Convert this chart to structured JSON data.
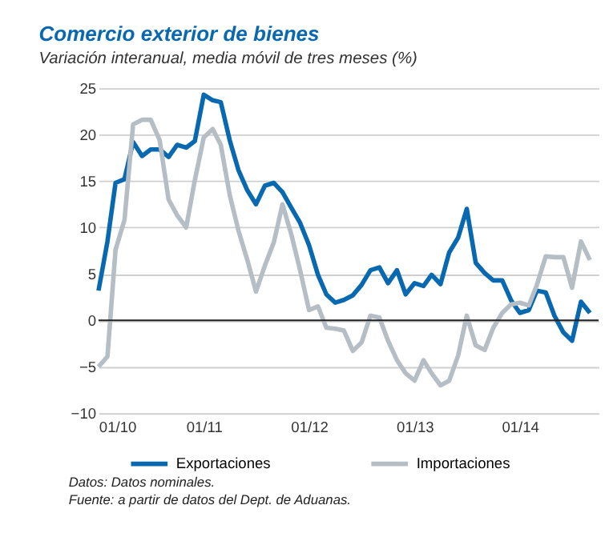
{
  "chart_data": {
    "type": "line",
    "title": "Comercio exterior de bienes",
    "subtitle": "Variación interanual, media móvil de tres meses (%)",
    "x": [
      "2010-01",
      "2010-02",
      "2010-03",
      "2010-04",
      "2010-05",
      "2010-06",
      "2010-07",
      "2010-08",
      "2010-09",
      "2010-10",
      "2010-11",
      "2010-12",
      "2011-01",
      "2011-02",
      "2011-03",
      "2011-04",
      "2011-05",
      "2011-06",
      "2011-07",
      "2011-08",
      "2011-09",
      "2011-10",
      "2011-11",
      "2011-12",
      "2012-01",
      "2012-02",
      "2012-03",
      "2012-04",
      "2012-05",
      "2012-06",
      "2012-07",
      "2012-08",
      "2012-09",
      "2012-10",
      "2012-11",
      "2012-12",
      "2013-01",
      "2013-02",
      "2013-03",
      "2013-04",
      "2013-05",
      "2013-06",
      "2013-07",
      "2013-08",
      "2013-09",
      "2013-10",
      "2013-11",
      "2013-12",
      "2014-01",
      "2014-02",
      "2014-03",
      "2014-04",
      "2014-05",
      "2014-06",
      "2014-07",
      "2014-08",
      "2014-09"
    ],
    "series": [
      {
        "name": "Exportaciones",
        "color": "#0868b0",
        "values": [
          3.2,
          8.5,
          14.8,
          15.2,
          19.2,
          17.7,
          18.4,
          18.4,
          17.6,
          18.9,
          18.6,
          19.3,
          24.3,
          23.7,
          23.5,
          19.4,
          16.2,
          14.0,
          12.5,
          14.5,
          14.8,
          13.8,
          12.1,
          10.5,
          8.1,
          4.9,
          2.8,
          1.9,
          2.2,
          2.7,
          3.8,
          5.4,
          5.7,
          4.0,
          5.4,
          2.8,
          4.0,
          3.7,
          4.9,
          3.9,
          7.3,
          8.9,
          12.0,
          6.2,
          5.1,
          4.3,
          4.3,
          2.2,
          0.8,
          1.1,
          3.2,
          3.0,
          0.5,
          -1.3,
          -2.2,
          2.0,
          0.8
        ]
      },
      {
        "name": "Importaciones",
        "color": "#b4bec4",
        "values": [
          -5.0,
          -3.9,
          7.6,
          10.8,
          21.1,
          21.6,
          21.6,
          19.4,
          13.0,
          11.3,
          10.0,
          15.1,
          19.7,
          20.6,
          18.9,
          13.5,
          9.7,
          6.5,
          3.1,
          5.9,
          8.4,
          12.5,
          9.2,
          5.4,
          1.1,
          1.5,
          -0.8,
          -0.9,
          -1.1,
          -3.3,
          -2.4,
          0.5,
          0.3,
          -2.2,
          -4.3,
          -5.7,
          -6.5,
          -4.3,
          -5.7,
          -7.0,
          -6.5,
          -3.8,
          0.5,
          -2.7,
          -3.2,
          -0.8,
          0.8,
          1.7,
          1.9,
          1.6,
          3.8,
          6.9,
          6.8,
          6.8,
          3.5,
          8.5,
          6.5
        ]
      }
    ],
    "xlim": [
      "2010-01",
      "2014-10"
    ],
    "xticks": [
      {
        "value": "2010-01",
        "label": "01/10"
      },
      {
        "value": "2011-01",
        "label": "01/11"
      },
      {
        "value": "2012-01",
        "label": "01/12"
      },
      {
        "value": "2013-01",
        "label": "01/13"
      },
      {
        "value": "2014-01",
        "label": "01/14"
      }
    ],
    "ylim": [
      -10,
      25
    ],
    "yticks": [
      -10,
      -5,
      0,
      5,
      10,
      15,
      20,
      25
    ],
    "ref_lines": [
      {
        "axis": "y",
        "value": 0,
        "color": "#222222"
      }
    ],
    "grid": "y",
    "legend": "bottom",
    "line_style": "solid",
    "marker": "none",
    "annotations": [
      "Datos: Datos nominales.",
      "Fuente: a partir de datos del Dept. de Aduanas."
    ]
  }
}
